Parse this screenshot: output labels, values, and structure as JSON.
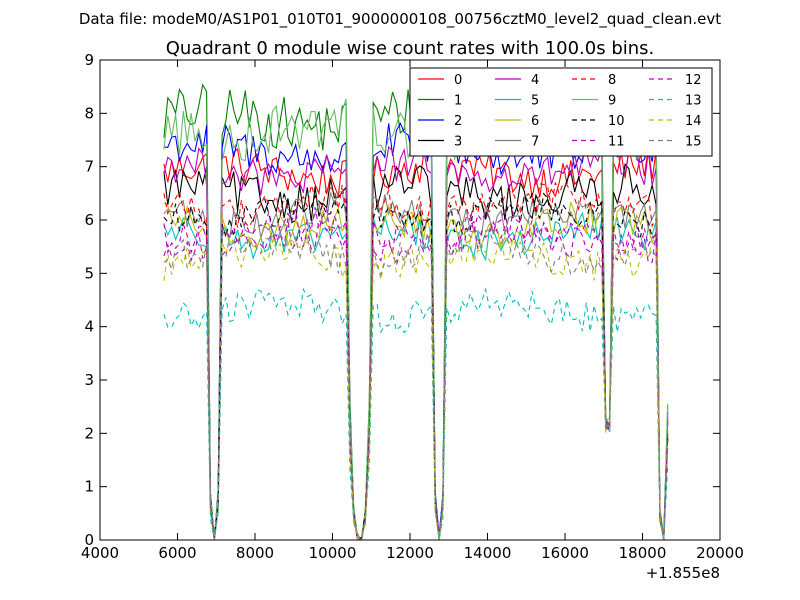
{
  "chart_data": {
    "type": "line",
    "suptitle": "Data file: modeM0/AS1P01_010T01_9000000108_00756cztM0_level2_quad_clean.evt",
    "title": "Quadrant 0 module wise count rates with 100.0s bins.",
    "xlabel": "",
    "ylabel": "",
    "x_offset_label": "+1.855e8",
    "xlim": [
      4000,
      20000
    ],
    "ylim": [
      0,
      9
    ],
    "x_ticks": [
      4000,
      6000,
      8000,
      10000,
      12000,
      14000,
      16000,
      18000,
      20000
    ],
    "y_ticks": [
      0,
      1,
      2,
      3,
      4,
      5,
      6,
      7,
      8,
      9
    ],
    "legend_position": "top-right",
    "legend_columns": 4,
    "bin_width_s": 100,
    "segments": [
      [
        5650,
        6750
      ],
      [
        7150,
        10350
      ],
      [
        11050,
        12550
      ],
      [
        12950,
        16950
      ],
      [
        17250,
        18350
      ]
    ],
    "dips": [
      {
        "x_start": 6750,
        "x_end": 7150,
        "min_value": 0
      },
      {
        "x_start": 10350,
        "x_end": 11050,
        "min_value": 0
      },
      {
        "x_start": 12550,
        "x_end": 12950,
        "min_value": 0
      },
      {
        "x_start": 16950,
        "x_end": 17250,
        "min_value": 2
      },
      {
        "x_start": 18350,
        "x_end": 18700,
        "min_value": 0
      }
    ],
    "series": [
      {
        "name": "0",
        "color": "#ff0000",
        "style": "solid",
        "level": 6.9,
        "amplitude": 0.35
      },
      {
        "name": "1",
        "color": "#008000",
        "style": "solid",
        "level": 7.9,
        "amplitude": 0.5
      },
      {
        "name": "2",
        "color": "#0000ff",
        "style": "solid",
        "level": 7.3,
        "amplitude": 0.4
      },
      {
        "name": "3",
        "color": "#000000",
        "style": "solid",
        "level": 6.5,
        "amplitude": 0.4
      },
      {
        "name": "4",
        "color": "#bf00bf",
        "style": "solid",
        "level": 6.9,
        "amplitude": 0.35
      },
      {
        "name": "5",
        "color": "#00bfbf",
        "style": "solid",
        "level": 5.7,
        "amplitude": 0.3
      },
      {
        "name": "6",
        "color": "#bfbf00",
        "style": "solid",
        "level": 5.9,
        "amplitude": 0.3
      },
      {
        "name": "7",
        "color": "#808080",
        "style": "solid",
        "level": 6.1,
        "amplitude": 0.3
      },
      {
        "name": "8",
        "color": "#ff0000",
        "style": "dashed",
        "level": 6.3,
        "amplitude": 0.3
      },
      {
        "name": "9",
        "color": "#66bb66",
        "style": "solid",
        "level": 7.7,
        "amplitude": 0.5
      },
      {
        "name": "10",
        "color": "#000000",
        "style": "dashed",
        "level": 6.1,
        "amplitude": 0.3
      },
      {
        "name": "11",
        "color": "#bf00bf",
        "style": "dashed",
        "level": 5.8,
        "amplitude": 0.3
      },
      {
        "name": "12",
        "color": "#bf00bf",
        "style": "dashed",
        "level": 5.6,
        "amplitude": 0.3
      },
      {
        "name": "13",
        "color": "#00bfbf",
        "style": "dashed",
        "level": 4.3,
        "amplitude": 0.3
      },
      {
        "name": "14",
        "color": "#bfbf00",
        "style": "dashed",
        "level": 5.3,
        "amplitude": 0.3
      },
      {
        "name": "15",
        "color": "#808080",
        "style": "dashed",
        "level": 5.4,
        "amplitude": 0.3
      }
    ]
  }
}
